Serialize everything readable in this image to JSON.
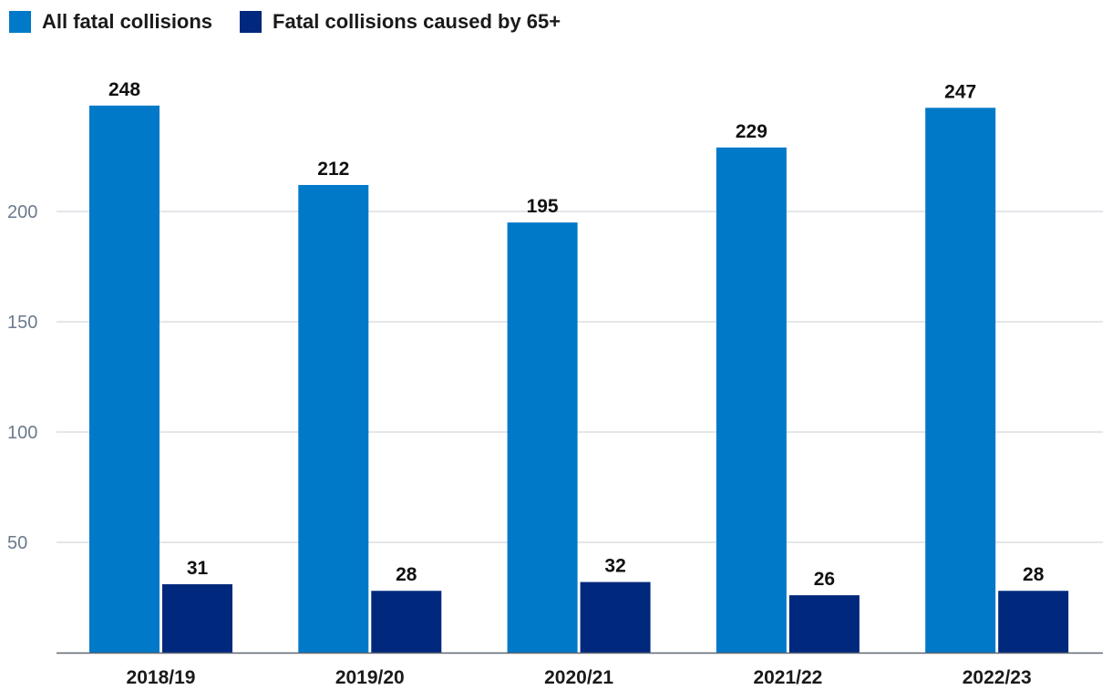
{
  "chart_data": {
    "type": "bar",
    "title": "",
    "xlabel": "",
    "ylabel": "",
    "categories": [
      "2018/19",
      "2019/20",
      "2020/21",
      "2021/22",
      "2022/23"
    ],
    "series": [
      {
        "name": "All fatal collisions",
        "color": "#0079C8",
        "values": [
          248,
          212,
          195,
          229,
          247
        ]
      },
      {
        "name": "Fatal collisions caused by 65+",
        "color": "#00287C",
        "values": [
          31,
          28,
          32,
          26,
          28
        ]
      }
    ],
    "yticks": [
      50,
      100,
      150,
      200
    ],
    "ylim": [
      0,
      256
    ],
    "grid": true,
    "legend": "top-left"
  }
}
